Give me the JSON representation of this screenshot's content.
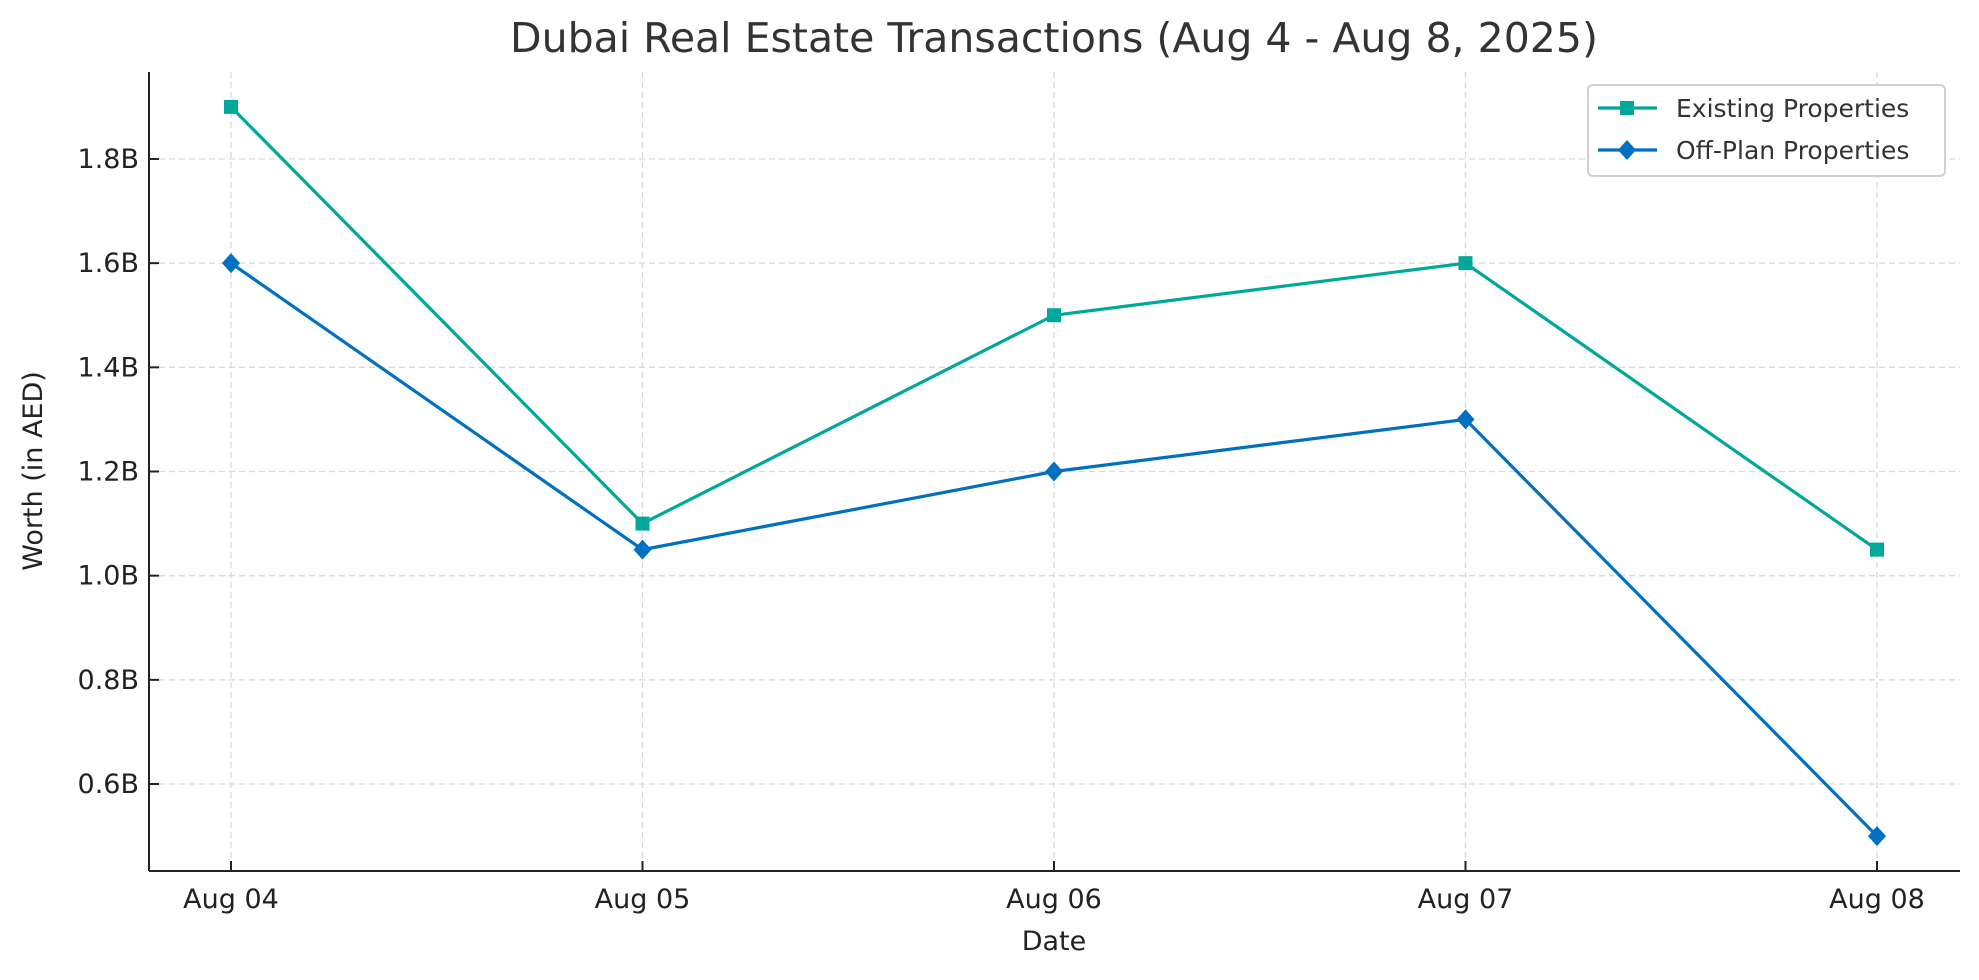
{
  "chart_data": {
    "type": "line",
    "title": "Dubai Real Estate Transactions (Aug 4 - Aug 8, 2025)",
    "xlabel": "Date",
    "ylabel": "Worth (in AED)",
    "categories": [
      "Aug 04",
      "Aug 05",
      "Aug 06",
      "Aug 07",
      "Aug 08"
    ],
    "yticks": [
      0.6,
      0.8,
      1.0,
      1.2,
      1.4,
      1.6,
      1.8
    ],
    "ytick_labels": [
      "0.6B",
      "0.8B",
      "1.0B",
      "1.2B",
      "1.4B",
      "1.6B",
      "1.8B"
    ],
    "ylim": [
      0.433,
      1.967
    ],
    "units": "billion AED",
    "grid": true,
    "legend_position": "top-right",
    "series": [
      {
        "name": "Existing Properties",
        "color": "#00a89a",
        "marker": "square",
        "values": [
          1.9,
          1.1,
          1.5,
          1.6,
          1.05
        ]
      },
      {
        "name": "Off-Plan Properties",
        "color": "#0070c0",
        "marker": "diamond",
        "values": [
          1.6,
          1.05,
          1.2,
          1.3,
          0.5
        ]
      }
    ]
  }
}
